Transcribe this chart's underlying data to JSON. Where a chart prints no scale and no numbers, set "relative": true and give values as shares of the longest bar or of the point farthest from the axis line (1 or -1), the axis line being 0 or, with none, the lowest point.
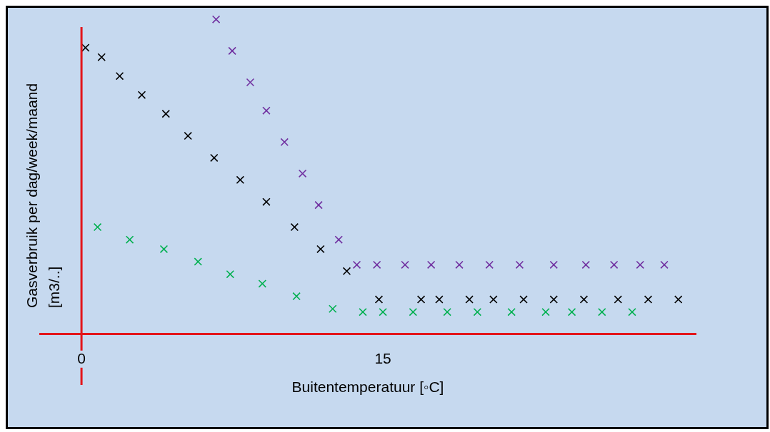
{
  "chart_data": {
    "type": "scatter",
    "relative": true,
    "xlabel": "Buitentemperatuur [◦C]",
    "ylabel": "Gasverbruik per dag/week/maand\n[m3/..]",
    "xlim": [
      -2.1,
      30.6
    ],
    "xticks": [
      0,
      15
    ],
    "grid": false,
    "ref_lines": [
      {
        "axis": "x",
        "value": 0,
        "color": "#e3161b"
      }
    ],
    "legend": false,
    "marker": "cross",
    "series": [
      {
        "color": "#7030a0",
        "x": [
          6.7,
          7.5,
          8.4,
          9.2,
          10.1,
          11.0,
          11.8,
          12.8,
          13.7,
          14.7,
          16.1,
          17.4,
          18.8,
          20.3,
          21.8,
          23.5,
          25.1,
          26.5,
          27.8,
          29.0
        ],
        "values": [
          1.0,
          0.9,
          0.8,
          0.71,
          0.61,
          0.51,
          0.41,
          0.3,
          0.22,
          0.22,
          0.22,
          0.22,
          0.22,
          0.22,
          0.22,
          0.22,
          0.22,
          0.22,
          0.22,
          0.22
        ]
      },
      {
        "color": "#000000",
        "x": [
          0.2,
          1.0,
          1.9,
          3.0,
          4.2,
          5.3,
          6.6,
          7.9,
          9.2,
          10.6,
          11.9,
          13.2,
          14.8,
          16.9,
          17.8,
          19.3,
          20.5,
          22.0,
          23.5,
          25.0,
          26.7,
          28.2,
          29.7
        ],
        "values": [
          0.91,
          0.88,
          0.82,
          0.76,
          0.7,
          0.63,
          0.56,
          0.49,
          0.42,
          0.34,
          0.27,
          0.2,
          0.11,
          0.11,
          0.11,
          0.11,
          0.11,
          0.11,
          0.11,
          0.11,
          0.11,
          0.11,
          0.11
        ]
      },
      {
        "color": "#00b050",
        "x": [
          0.8,
          2.4,
          4.1,
          5.8,
          7.4,
          9.0,
          10.7,
          12.5,
          14.0,
          15.0,
          16.5,
          18.2,
          19.7,
          21.4,
          23.1,
          24.4,
          25.9,
          27.4
        ],
        "values": [
          0.34,
          0.3,
          0.27,
          0.23,
          0.19,
          0.16,
          0.12,
          0.08,
          0.07,
          0.07,
          0.07,
          0.07,
          0.07,
          0.07,
          0.07,
          0.07,
          0.07,
          0.07
        ]
      }
    ]
  }
}
